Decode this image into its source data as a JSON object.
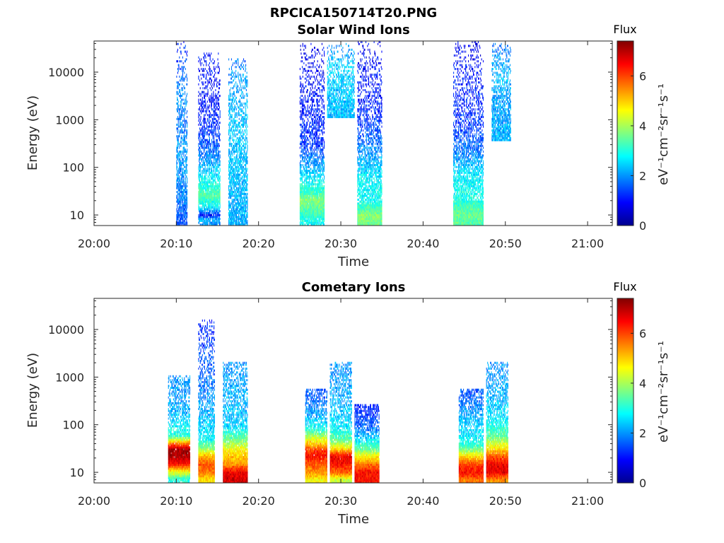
{
  "figure_title": "RPCICA150714T20.PNG",
  "colors": {
    "colormap": [
      "#00008f",
      "#0000ff",
      "#0080ff",
      "#00ffff",
      "#80ff80",
      "#ffff00",
      "#ff8000",
      "#ff0000",
      "#800000"
    ],
    "axis": "#262626",
    "background": "#ffffff"
  },
  "chart_data": [
    {
      "type": "heatmap",
      "title": "Solar Wind Ions",
      "xlabel": "Time",
      "ylabel": "Energy (eV)",
      "xscale": "linear",
      "yscale": "log",
      "xlim": [
        "20:00",
        "21:03"
      ],
      "ylim": [
        6,
        45000
      ],
      "x_ticks": [
        "20:00",
        "20:10",
        "20:20",
        "20:30",
        "20:40",
        "20:50",
        "21:00"
      ],
      "y_ticks": [
        10,
        100,
        1000,
        10000
      ],
      "y_tick_labels": [
        "10",
        "100",
        "1000",
        "10000"
      ],
      "colorbar": {
        "title": "Flux",
        "label": "eV⁻¹cm⁻²sr⁻¹s⁻¹",
        "range": [
          0,
          7.4
        ],
        "ticks": [
          0,
          2,
          4,
          6
        ],
        "tick_labels": [
          "0",
          "2",
          "4",
          "6"
        ]
      },
      "bursts": [
        {
          "start": "20:10:00",
          "end": "20:11:20",
          "values": [
            [
              8,
              1.5
            ],
            [
              20,
              1.8
            ],
            [
              200,
              2.1
            ],
            [
              800,
              1.8
            ],
            [
              3000,
              2.0
            ],
            [
              12000,
              1.5
            ],
            [
              35000,
              1.2
            ]
          ]
        },
        {
          "start": "20:12:40",
          "end": "20:15:20",
          "values": [
            [
              7,
              2.0
            ],
            [
              8,
              2.4
            ],
            [
              10,
              1.0
            ],
            [
              14,
              2.6
            ],
            [
              25,
              3.4
            ],
            [
              80,
              2.5
            ],
            [
              300,
              1.5
            ],
            [
              1000,
              1.2
            ],
            [
              3000,
              1.0
            ],
            [
              10000,
              1.0
            ],
            [
              18000,
              0.9
            ]
          ]
        },
        {
          "start": "20:16:20",
          "end": "20:18:40",
          "values": [
            [
              8,
              2.2
            ],
            [
              700,
              2.4
            ],
            [
              2000,
              2.2
            ],
            [
              10000,
              2.0
            ],
            [
              14000,
              1.8
            ]
          ]
        },
        {
          "start": "20:25:00",
          "end": "20:28:00",
          "values": [
            [
              7,
              2.8
            ],
            [
              10,
              3.2
            ],
            [
              20,
              3.8
            ],
            [
              30,
              3.2
            ],
            [
              40,
              3.0
            ],
            [
              60,
              2.6
            ],
            [
              100,
              2.2
            ],
            [
              300,
              1.3
            ],
            [
              1000,
              1.2
            ],
            [
              3000,
              1.0
            ],
            [
              10000,
              0.9
            ],
            [
              30000,
              0.8
            ]
          ]
        },
        {
          "start": "20:28:20",
          "end": "20:31:40",
          "values": [
            [
              1500,
              2.3
            ],
            [
              4000,
              2.4
            ],
            [
              12000,
              2.5
            ],
            [
              28000,
              2.0
            ]
          ]
        },
        {
          "start": "20:32:00",
          "end": "20:35:00",
          "values": [
            [
              7,
              3.6
            ],
            [
              10,
              3.8
            ],
            [
              20,
              2.8
            ],
            [
              40,
              2.8
            ],
            [
              60,
              2.7
            ],
            [
              100,
              2.4
            ],
            [
              300,
              1.8
            ],
            [
              1000,
              1.3
            ],
            [
              3000,
              1.1
            ],
            [
              10000,
              1.0
            ],
            [
              35000,
              0.8
            ]
          ]
        },
        {
          "start": "20:43:40",
          "end": "20:47:20",
          "values": [
            [
              7,
              3.4
            ],
            [
              10,
              3.6
            ],
            [
              20,
              3.0
            ],
            [
              40,
              2.8
            ],
            [
              80,
              2.6
            ],
            [
              200,
              1.8
            ],
            [
              600,
              1.4
            ],
            [
              2000,
              1.2
            ],
            [
              6000,
              1.1
            ],
            [
              15000,
              1.0
            ],
            [
              35000,
              0.8
            ]
          ]
        },
        {
          "start": "20:48:20",
          "end": "20:50:40",
          "values": [
            [
              500,
              2.2
            ],
            [
              2000,
              2.1
            ],
            [
              8000,
              2.3
            ],
            [
              20000,
              2.0
            ],
            [
              30000,
              1.8
            ]
          ]
        }
      ]
    },
    {
      "type": "heatmap",
      "title": "Cometary Ions",
      "xlabel": "Time",
      "ylabel": "Energy (eV)",
      "xscale": "linear",
      "yscale": "log",
      "xlim": [
        "20:00",
        "21:03"
      ],
      "ylim": [
        6,
        45000
      ],
      "x_ticks": [
        "20:00",
        "20:10",
        "20:20",
        "20:30",
        "20:40",
        "20:50",
        "21:00"
      ],
      "y_ticks": [
        10,
        100,
        1000,
        10000
      ],
      "y_tick_labels": [
        "10",
        "100",
        "1000",
        "10000"
      ],
      "colorbar": {
        "title": "Flux",
        "label": "eV⁻¹cm⁻²sr⁻¹s⁻¹",
        "range": [
          0,
          7.4
        ],
        "ticks": [
          0,
          2,
          4,
          6
        ],
        "tick_labels": [
          "0",
          "2",
          "4",
          "6"
        ]
      },
      "bursts": [
        {
          "start": "20:09:00",
          "end": "20:11:40",
          "values": [
            [
              7,
              3.0
            ],
            [
              10,
              4.4
            ],
            [
              15,
              6.4
            ],
            [
              22,
              7.1
            ],
            [
              30,
              7.2
            ],
            [
              40,
              5.6
            ],
            [
              60,
              3.0
            ],
            [
              200,
              2.2
            ],
            [
              800,
              2.0
            ]
          ]
        },
        {
          "start": "20:12:40",
          "end": "20:14:40",
          "values": [
            [
              7,
              4.8
            ],
            [
              10,
              5.6
            ],
            [
              15,
              5.8
            ],
            [
              22,
              5.2
            ],
            [
              30,
              4.0
            ],
            [
              50,
              2.8
            ],
            [
              100,
              2.4
            ],
            [
              300,
              2.0
            ],
            [
              12000,
              1.2
            ]
          ]
        },
        {
          "start": "20:15:40",
          "end": "20:18:40",
          "values": [
            [
              7,
              6.8
            ],
            [
              10,
              6.6
            ],
            [
              15,
              5.4
            ],
            [
              22,
              5.0
            ],
            [
              30,
              4.6
            ],
            [
              45,
              3.8
            ],
            [
              100,
              2.4
            ],
            [
              500,
              2.2
            ],
            [
              1500,
              2.0
            ]
          ]
        },
        {
          "start": "20:25:40",
          "end": "20:28:20",
          "values": [
            [
              7,
              4.6
            ],
            [
              10,
              5.4
            ],
            [
              15,
              5.8
            ],
            [
              22,
              6.4
            ],
            [
              30,
              6.0
            ],
            [
              50,
              4.4
            ],
            [
              80,
              3.0
            ],
            [
              150,
              2.2
            ],
            [
              400,
              1.6
            ]
          ]
        },
        {
          "start": "20:28:40",
          "end": "20:31:20",
          "values": [
            [
              7,
              4.2
            ],
            [
              10,
              5.8
            ],
            [
              15,
              6.4
            ],
            [
              22,
              6.6
            ],
            [
              30,
              5.0
            ],
            [
              50,
              3.4
            ],
            [
              100,
              2.6
            ],
            [
              300,
              2.2
            ],
            [
              1500,
              2.0
            ]
          ]
        },
        {
          "start": "20:31:40",
          "end": "20:34:40",
          "values": [
            [
              7,
              6.4
            ],
            [
              10,
              6.4
            ],
            [
              15,
              5.6
            ],
            [
              22,
              4.6
            ],
            [
              30,
              3.6
            ],
            [
              60,
              2.2
            ],
            [
              100,
              1.6
            ],
            [
              200,
              1.2
            ]
          ]
        },
        {
          "start": "20:44:20",
          "end": "20:47:20",
          "values": [
            [
              7,
              5.6
            ],
            [
              10,
              6.4
            ],
            [
              15,
              6.0
            ],
            [
              22,
              4.8
            ],
            [
              35,
              3.2
            ],
            [
              60,
              2.6
            ],
            [
              150,
              2.2
            ],
            [
              400,
              1.6
            ]
          ]
        },
        {
          "start": "20:47:40",
          "end": "20:50:20",
          "values": [
            [
              7,
              5.4
            ],
            [
              10,
              6.6
            ],
            [
              15,
              6.6
            ],
            [
              22,
              5.8
            ],
            [
              35,
              4.6
            ],
            [
              60,
              3.4
            ],
            [
              150,
              2.6
            ],
            [
              500,
              2.2
            ],
            [
              1500,
              2.0
            ]
          ]
        }
      ]
    }
  ]
}
